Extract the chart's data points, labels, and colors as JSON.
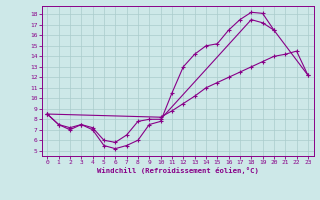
{
  "xlabel": "Windchill (Refroidissement éolien,°C)",
  "bg_color": "#cde8e8",
  "line_color": "#880088",
  "grid_color": "#aacccc",
  "xlim": [
    -0.5,
    23.5
  ],
  "ylim": [
    4.5,
    18.8
  ],
  "xticks": [
    0,
    1,
    2,
    3,
    4,
    5,
    6,
    7,
    8,
    9,
    10,
    11,
    12,
    13,
    14,
    15,
    16,
    17,
    18,
    19,
    20,
    21,
    22,
    23
  ],
  "yticks": [
    5,
    6,
    7,
    8,
    9,
    10,
    11,
    12,
    13,
    14,
    15,
    16,
    17,
    18
  ],
  "series": [
    {
      "x": [
        0,
        1,
        2,
        3,
        4,
        5,
        6,
        7,
        8,
        9,
        10,
        11,
        12,
        13,
        14,
        15,
        16,
        17,
        18,
        19,
        20
      ],
      "y": [
        8.5,
        7.5,
        7.0,
        7.5,
        7.0,
        5.5,
        5.2,
        5.5,
        6.0,
        7.5,
        7.8,
        10.5,
        13.0,
        14.2,
        15.0,
        15.2,
        16.5,
        17.5,
        18.2,
        18.1,
        16.5
      ]
    },
    {
      "x": [
        0,
        1,
        2,
        3,
        4,
        5,
        6,
        7,
        8,
        9,
        10,
        18,
        19,
        20,
        23
      ],
      "y": [
        8.5,
        7.5,
        7.2,
        7.5,
        7.2,
        6.0,
        5.8,
        6.5,
        7.8,
        8.0,
        8.0,
        17.5,
        17.2,
        16.5,
        12.2
      ]
    },
    {
      "x": [
        0,
        10,
        11,
        12,
        13,
        14,
        15,
        16,
        17,
        18,
        19,
        20,
        21,
        22,
        23
      ],
      "y": [
        8.5,
        8.2,
        8.8,
        9.5,
        10.2,
        11.0,
        11.5,
        12.0,
        12.5,
        13.0,
        13.5,
        14.0,
        14.2,
        14.5,
        12.2
      ]
    }
  ]
}
